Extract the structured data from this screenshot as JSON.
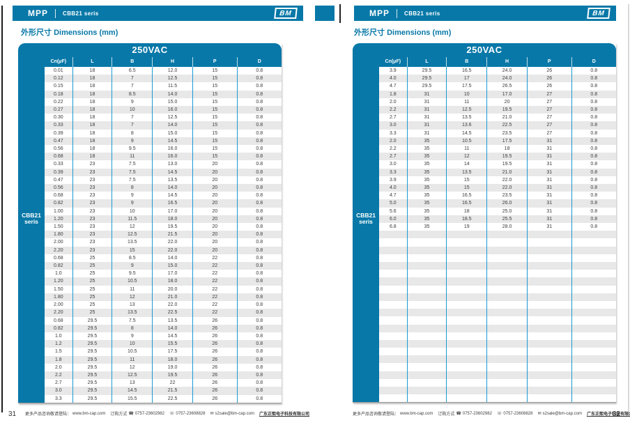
{
  "accent_color": "#0878a8",
  "pages": [
    {
      "page_number": "31",
      "header": {
        "brand": "MPP",
        "series": "CBB21 seris",
        "logo": "BM"
      },
      "section_title": {
        "zh": "外形尺寸",
        "en": "Dimensions (mm)"
      },
      "table": {
        "voltage": "250VAC",
        "side_label_line1": "CBB21",
        "side_label_line2": "seris",
        "columns": [
          "Cn(μF)",
          "L",
          "B",
          "H",
          "P",
          "D"
        ],
        "rows": [
          [
            "0.01",
            "18",
            "6.5",
            "12.0",
            "15",
            "0.8"
          ],
          [
            "0.12",
            "18",
            "7",
            "12.5",
            "15",
            "0.8"
          ],
          [
            "0.15",
            "18",
            "7",
            "11.5",
            "15",
            "0.8"
          ],
          [
            "0.18",
            "18",
            "8.5",
            "14.0",
            "15",
            "0.8"
          ],
          [
            "0.22",
            "18",
            "9",
            "15.0",
            "15",
            "0.8"
          ],
          [
            "0.27",
            "18",
            "10",
            "16.0",
            "15",
            "0.8"
          ],
          [
            "0.30",
            "18",
            "7",
            "12.5",
            "15",
            "0.8"
          ],
          [
            "0.33",
            "18",
            "7",
            "14.0",
            "15",
            "0.8"
          ],
          [
            "0.39",
            "18",
            "8",
            "15.0",
            "15",
            "0.8"
          ],
          [
            "0.47",
            "18",
            "9",
            "14.5",
            "15",
            "0.8"
          ],
          [
            "0.56",
            "18",
            "9.5",
            "16.0",
            "15",
            "0.8"
          ],
          [
            "0.68",
            "18",
            "11",
            "16.0",
            "15",
            "0.8"
          ],
          [
            "0.33",
            "23",
            "7.5",
            "13.0",
            "20",
            "0.8"
          ],
          [
            "0.39",
            "23",
            "7.5",
            "14.5",
            "20",
            "0.8"
          ],
          [
            "0.47",
            "23",
            "7.5",
            "13.5",
            "20",
            "0.8"
          ],
          [
            "0.56",
            "23",
            "8",
            "14.0",
            "20",
            "0.8"
          ],
          [
            "0.68",
            "23",
            "9",
            "14.5",
            "20",
            "0.8"
          ],
          [
            "0.82",
            "23",
            "9",
            "16.5",
            "20",
            "0.8"
          ],
          [
            "1.00",
            "23",
            "10",
            "17.0",
            "20",
            "0.8"
          ],
          [
            "1.20",
            "23",
            "11.5",
            "18.0",
            "20",
            "0.8"
          ],
          [
            "1.50",
            "23",
            "12",
            "19.5",
            "20",
            "0.8"
          ],
          [
            "1.80",
            "23",
            "12.5",
            "21.5",
            "20",
            "0.8"
          ],
          [
            "2.00",
            "23",
            "13.5",
            "22.0",
            "20",
            "0.8"
          ],
          [
            "2.20",
            "23",
            "15",
            "22.0",
            "20",
            "0.8"
          ],
          [
            "0.68",
            "25",
            "8.5",
            "14.0",
            "22",
            "0.8"
          ],
          [
            "0.82",
            "25",
            "9",
            "15.0",
            "22",
            "0.8"
          ],
          [
            "1.0",
            "25",
            "9.5",
            "17.0",
            "22",
            "0.8"
          ],
          [
            "1.20",
            "25",
            "10.5",
            "18.0",
            "22",
            "0.8"
          ],
          [
            "1.50",
            "25",
            "11",
            "20.0",
            "22",
            "0.8"
          ],
          [
            "1.80",
            "25",
            "12",
            "21.0",
            "22",
            "0.8"
          ],
          [
            "2.00",
            "25",
            "13",
            "22.0",
            "22",
            "0.8"
          ],
          [
            "2.20",
            "25",
            "13.5",
            "22.5",
            "22",
            "0.8"
          ],
          [
            "0.68",
            "29.5",
            "7.5",
            "13.5",
            "26",
            "0.8"
          ],
          [
            "0.82",
            "29.5",
            "8",
            "14.0",
            "26",
            "0.8"
          ],
          [
            "1.0",
            "29.5",
            "9",
            "14.5",
            "26",
            "0.8"
          ],
          [
            "1.2",
            "29.5",
            "10",
            "15.5",
            "26",
            "0.8"
          ],
          [
            "1.5",
            "29.5",
            "10.5",
            "17.5",
            "26",
            "0.8"
          ],
          [
            "1.8",
            "29.5",
            "11",
            "18.0",
            "26",
            "0.8"
          ],
          [
            "2.0",
            "29.5",
            "12",
            "19.0",
            "26",
            "0.8"
          ],
          [
            "2.2",
            "29.5",
            "12.5",
            "19.5",
            "26",
            "0.8"
          ],
          [
            "2.7",
            "29.5",
            "13",
            "22",
            "26",
            "0.8"
          ],
          [
            "3.0",
            "29.5",
            "14.5",
            "21.5",
            "26",
            "0.8"
          ],
          [
            "3.3",
            "29.5",
            "15.5",
            "22.5",
            "26",
            "0.8"
          ]
        ]
      },
      "footer": {
        "site_label": "更多产品咨询敬请登陆：",
        "site_url": "www.bm-cap.com",
        "order_label": "订购方式",
        "phone": "0757-23602982",
        "fax": "0757-23608828",
        "email": "s2sale@bm-cap.com",
        "company": "广东正熙电子科技有限公司"
      }
    },
    {
      "page_number": "32",
      "header": {
        "brand": "MPP",
        "series": "CBB21 seris",
        "logo": "BM"
      },
      "section_title": {
        "zh": "外形尺寸",
        "en": "Dimensions (mm)"
      },
      "table": {
        "voltage": "250VAC",
        "side_label_line1": "CBB21",
        "side_label_line2": "seris",
        "columns": [
          "Cn(μF)",
          "L",
          "B",
          "H",
          "P",
          "D"
        ],
        "rows": [
          [
            "3.9",
            "29.5",
            "16.5",
            "24.0",
            "26",
            "0.8"
          ],
          [
            "4.0",
            "29.5",
            "17",
            "24.0",
            "26",
            "0.8"
          ],
          [
            "4.7",
            "29.5",
            "17.5",
            "26.5",
            "26",
            "0.8"
          ],
          [
            "1.8",
            "31",
            "10",
            "17.0",
            "27",
            "0.8"
          ],
          [
            "2.0",
            "31",
            "11",
            "20",
            "27",
            "0.8"
          ],
          [
            "2.2",
            "31",
            "12.5",
            "19.5",
            "27",
            "0.8"
          ],
          [
            "2.7",
            "31",
            "13.5",
            "21.0",
            "27",
            "0.8"
          ],
          [
            "3.0",
            "31",
            "13.6",
            "22.5",
            "27",
            "0.8"
          ],
          [
            "3.3",
            "31",
            "14.5",
            "23.5",
            "27",
            "0.8"
          ],
          [
            "2.0",
            "35",
            "10.5",
            "17.5",
            "31",
            "0.8"
          ],
          [
            "2.2",
            "35",
            "11",
            "18",
            "31",
            "0.8"
          ],
          [
            "2.7",
            "35",
            "12",
            "19.5",
            "31",
            "0.8"
          ],
          [
            "3.0",
            "35",
            "14",
            "19.5",
            "31",
            "0.8"
          ],
          [
            "3.3",
            "35",
            "13.5",
            "21.0",
            "31",
            "0.8"
          ],
          [
            "3.9",
            "35",
            "15",
            "22.0",
            "31",
            "0.8"
          ],
          [
            "4.0",
            "35",
            "15",
            "22.0",
            "31",
            "0.8"
          ],
          [
            "4.7",
            "35",
            "16.5",
            "23.5",
            "31",
            "0.8"
          ],
          [
            "5.0",
            "35",
            "16.5",
            "26.0",
            "31",
            "0.8"
          ],
          [
            "5.6",
            "35",
            "18",
            "25.0",
            "31",
            "0.8"
          ],
          [
            "6.0",
            "35",
            "18.5",
            "25.5",
            "31",
            "0.8"
          ],
          [
            "6.8",
            "35",
            "19",
            "28.0",
            "31",
            "0.8"
          ]
        ]
      },
      "footer": {
        "site_label": "更多产品咨询敬请登陆：",
        "site_url": "www.bm-cap.com",
        "order_label": "订购方式",
        "phone": "0757-23602982",
        "fax": "0757-23608828",
        "email": "s2sale@bm-cap.com",
        "company": "广东正熙电子科技有限公司"
      }
    }
  ]
}
